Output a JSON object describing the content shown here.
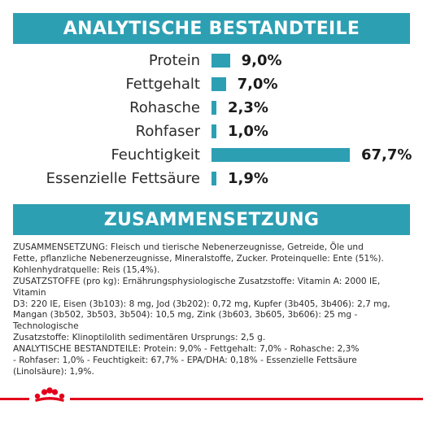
{
  "header": {
    "title": "ANALYTISCHE BESTANDTEILE"
  },
  "chart_data": {
    "type": "bar",
    "orientation": "horizontal",
    "categories": [
      "Protein",
      "Fettgehalt",
      "Rohasche",
      "Rohfaser",
      "Feuchtigkeit",
      "Essenzielle Fettsäure"
    ],
    "values": [
      9.0,
      7.0,
      2.3,
      1.0,
      67.7,
      1.9
    ],
    "value_labels": [
      "9,0%",
      "7,0%",
      "2,3%",
      "1,0%",
      "67,7%",
      "1,9%"
    ],
    "unit": "%",
    "xlim": [
      0,
      67.7
    ],
    "grid": false,
    "legend": "none",
    "bar_color": "#2d9fb3"
  },
  "section": {
    "title": "ZUSAMMENSETZUNG"
  },
  "composition": {
    "lines": [
      "ZUSAMMENSETZUNG: Fleisch und tierische Nebenerzeugnisse, Getreide, Öle und",
      "Fette, pflanzliche Nebenerzeugnisse, Mineralstoffe, Zucker. Proteinquelle: Ente (51%).",
      "Kohlenhydratquelle: Reis (15,4%).",
      "ZUSATZSTOFFE (pro kg): Ernährungsphysiologische Zusatzstoffe: Vitamin A: 2000 IE, Vitamin",
      "D3: 220 IE, Eisen (3b103): 8 mg, Jod (3b202): 0,72 mg, Kupfer (3b405, 3b406): 2,7 mg,",
      "Mangan (3b502, 3b503, 3b504): 10,5 mg, Zink (3b603, 3b605, 3b606): 25 mg - Technologische",
      "Zusatzstoffe: Klinoptilolith sedimentären Ursprungs: 2,5 g.",
      "ANALYTISCHE BESTANDTEILE: Protein: 9,0% - Fettgehalt: 7,0% - Rohasche: 2,3%",
      "- Rohfaser: 1,0% - Feuchtigkeit: 67,7% - EPA/DHA: 0,18% - Essenzielle Fettsäure",
      "(Linolsäure): 1,9%."
    ]
  },
  "colors": {
    "accent": "#2d9fb3",
    "brand_red": "#e2001a"
  },
  "footer": {
    "logo_icon": "royal-canin-crown-logo-icon"
  }
}
